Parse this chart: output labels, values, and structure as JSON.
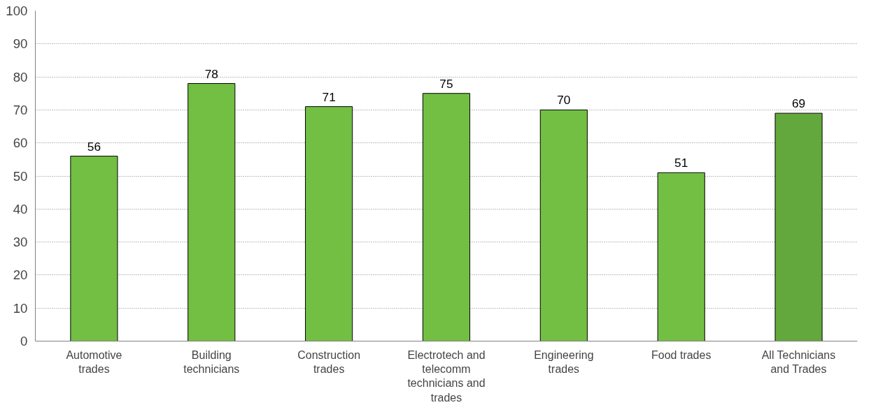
{
  "chart_data": {
    "type": "bar",
    "categories": [
      "Automotive trades",
      "Building technicians",
      "Construction trades",
      "Electrotech and telecomm technicians and trades",
      "Engineering trades",
      "Food trades",
      "All Technicians and Trades"
    ],
    "values": [
      56,
      78,
      71,
      75,
      70,
      51,
      69
    ],
    "colors": [
      "#72bf44",
      "#72bf44",
      "#72bf44",
      "#72bf44",
      "#72bf44",
      "#72bf44",
      "#63a83c"
    ],
    "ylim": [
      0,
      100
    ],
    "yticks": [
      0,
      10,
      20,
      30,
      40,
      50,
      60,
      70,
      80,
      90,
      100
    ],
    "grid": "y",
    "data_labels": true
  }
}
